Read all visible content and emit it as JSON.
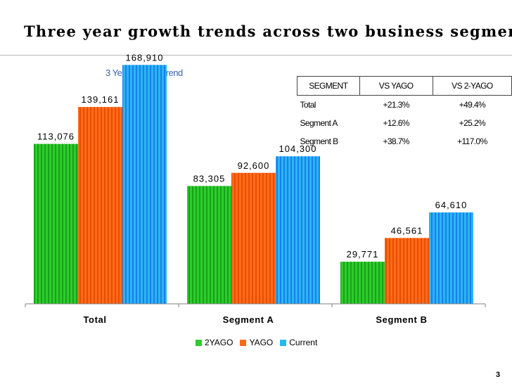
{
  "slide": {
    "title": "Three year growth trends across two business segments",
    "page_number": "3"
  },
  "colors": {
    "2YAGO": "#2ecc2e",
    "YAGO": "#ff6a1a",
    "Current": "#2ab6f0",
    "title_rule": "#b8b8b8",
    "chart_title": "#3a63b0"
  },
  "chart_data": {
    "type": "bar",
    "title": "3 Year Growth Trend",
    "categories": [
      "Total",
      "Segment A",
      "Segment B"
    ],
    "series": [
      {
        "name": "2YAGO",
        "values": [
          113076,
          83305,
          29771
        ]
      },
      {
        "name": "YAGO",
        "values": [
          139161,
          92600,
          46561
        ]
      },
      {
        "name": "Current",
        "values": [
          168910,
          104300,
          64610
        ]
      }
    ],
    "value_labels": [
      [
        "113,076",
        "83,305",
        "29,771"
      ],
      [
        "139,161",
        "92,600",
        "46,561"
      ],
      [
        "168,910",
        "104,300",
        "64,610"
      ]
    ],
    "ylim": [
      0,
      180000
    ],
    "grid": false,
    "legend": "bottom-center",
    "xlabel": "",
    "ylabel": ""
  },
  "segment_table": {
    "headers": [
      "SEGMENT",
      "VS YAGO",
      "VS 2-YAGO"
    ],
    "rows": [
      [
        "Total",
        "+21.3%",
        "+49.4%"
      ],
      [
        "Segment A",
        "+12.6%",
        "+25.2%"
      ],
      [
        "Segment B",
        "+38.7%",
        "+117.0%"
      ]
    ]
  }
}
